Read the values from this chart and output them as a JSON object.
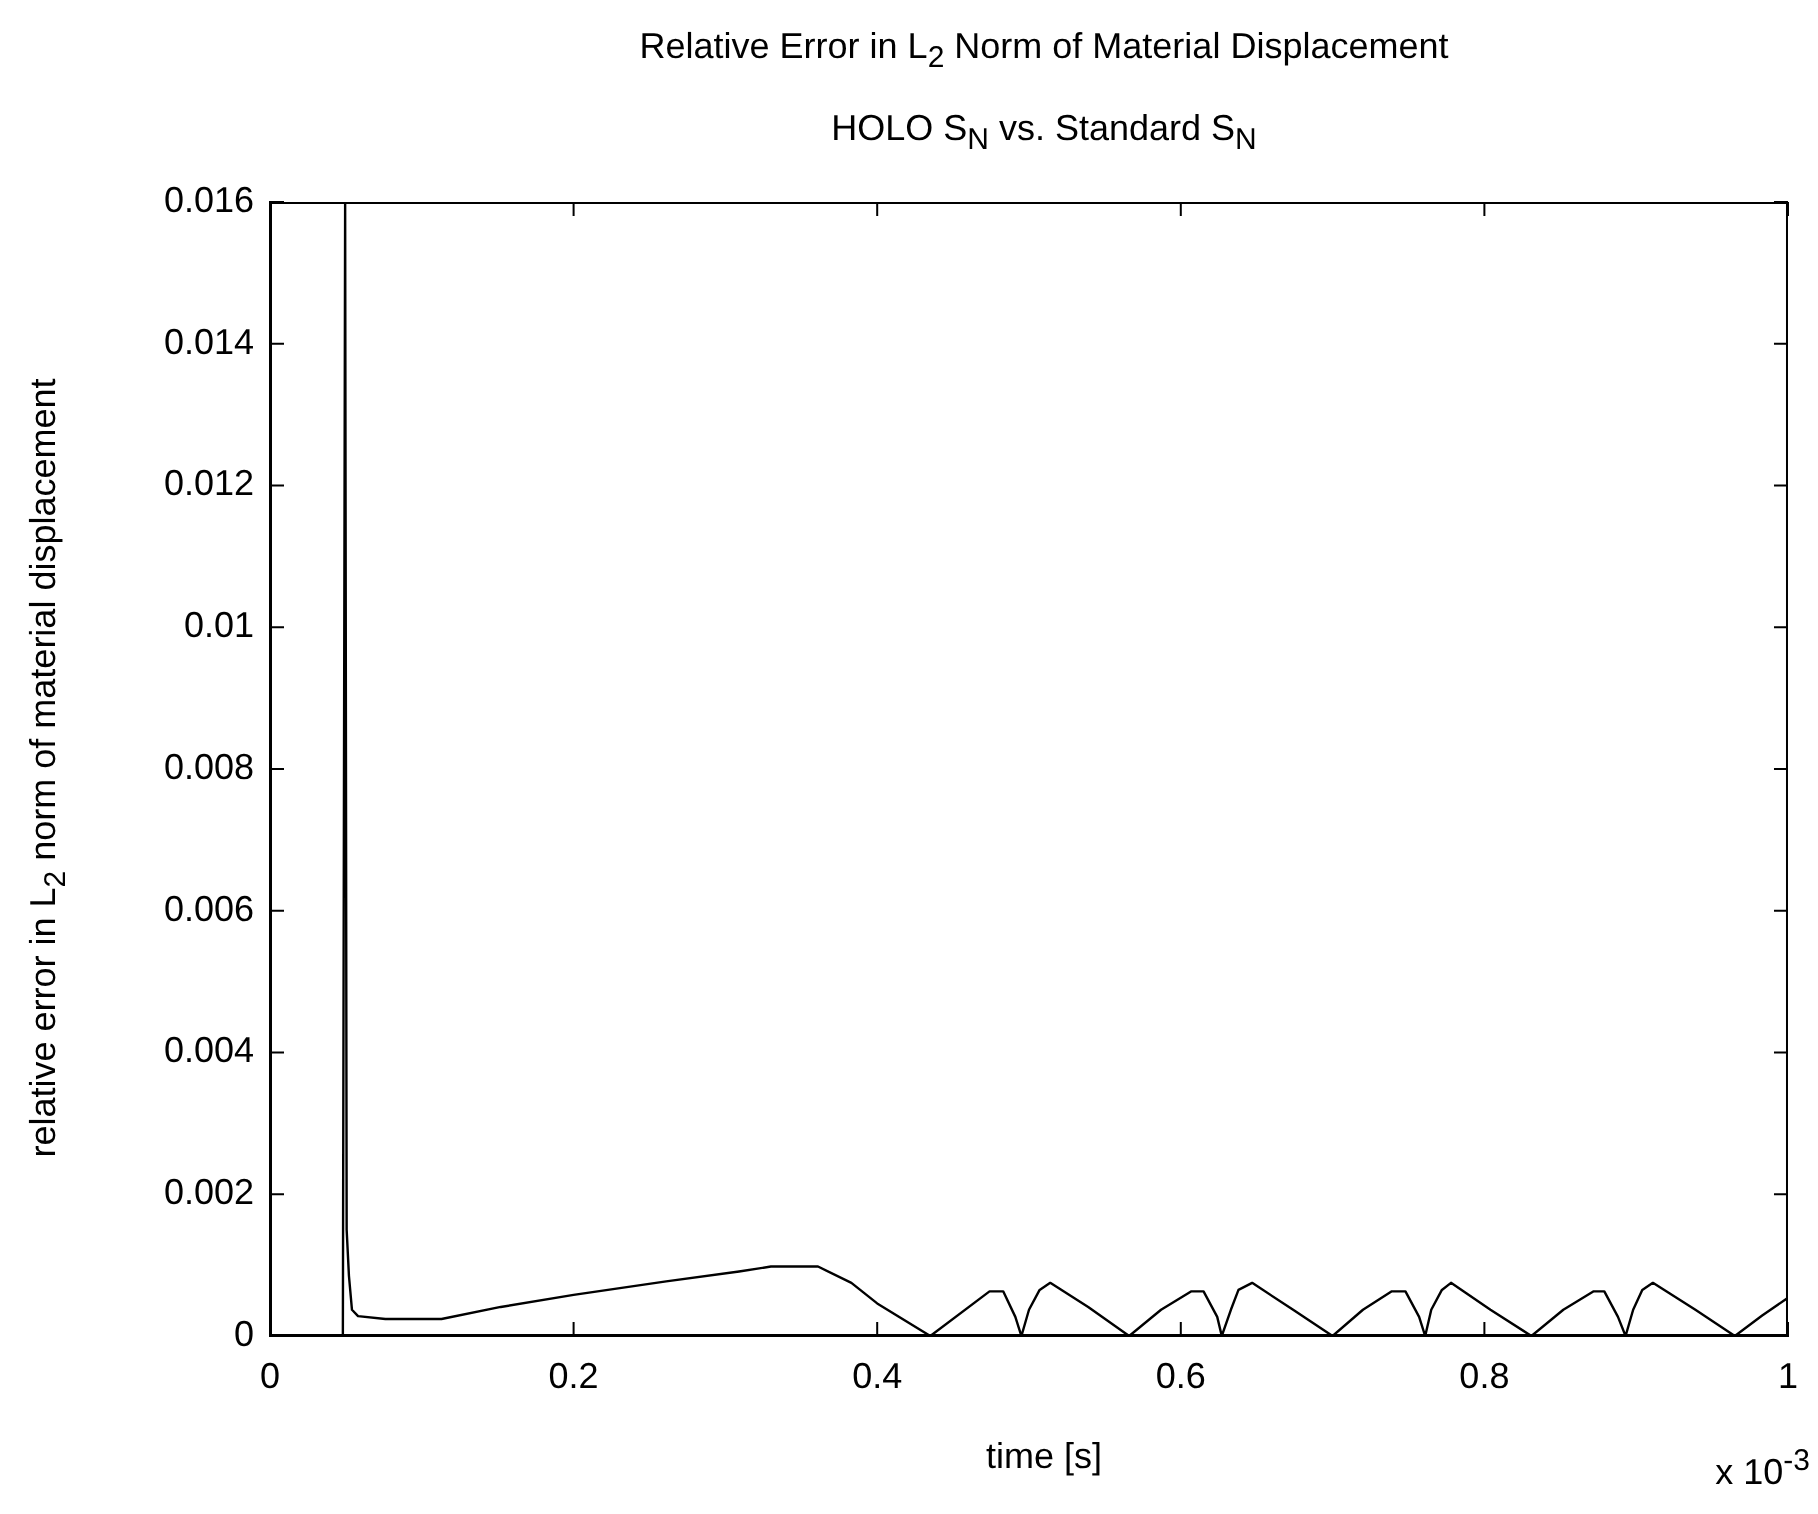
{
  "chart_data": {
    "type": "line",
    "title": "Relative Error in L$_{2}$ Norm of Material Displacement",
    "subtitle": "HOLO S$_{N}$ vs. Standard S$_{N}$",
    "xlabel": "time [s]",
    "ylabel": "relative error in L$_{2}$ norm of material displacement",
    "annotations": [
      "x 10$^{-3}$"
    ],
    "x": [
      0.048,
      0.0495,
      0.0505,
      0.052,
      0.054,
      0.058,
      0.076,
      0.113,
      0.152,
      0.2,
      0.261,
      0.309,
      0.33,
      0.361,
      0.383,
      0.4,
      0.435,
      0.474,
      0.483,
      0.491,
      0.495,
      0.5,
      0.507,
      0.514,
      0.539,
      0.566,
      0.587,
      0.607,
      0.615,
      0.624,
      0.627,
      0.633,
      0.638,
      0.647,
      0.674,
      0.7,
      0.72,
      0.739,
      0.748,
      0.757,
      0.761,
      0.765,
      0.772,
      0.778,
      0.804,
      0.831,
      0.852,
      0.872,
      0.879,
      0.888,
      0.893,
      0.898,
      0.904,
      0.911,
      0.939,
      0.965,
      0.983,
      1.0
    ],
    "series": [
      {
        "color": "#000000",
        "values": [
          0,
          0.016,
          0.0015,
          0.00085,
          0.00037,
          0.00028,
          0.00024,
          0.00024,
          0.00041,
          0.00058,
          0.00077,
          0.00091,
          0.00098,
          0.00098,
          0.00075,
          0.00046,
          0,
          0.00063,
          0.00063,
          0.00027,
          0,
          0.00037,
          0.00065,
          0.00075,
          0.00041,
          0,
          0.00037,
          0.00063,
          0.00063,
          0.00027,
          0,
          0.00037,
          0.00065,
          0.00075,
          0.00037,
          0,
          0.00037,
          0.00063,
          0.00063,
          0.00027,
          0,
          0.00037,
          0.00065,
          0.00075,
          0.00037,
          0,
          0.00037,
          0.00063,
          0.00063,
          0.00027,
          0,
          0.00037,
          0.00065,
          0.00075,
          0.00037,
          0,
          0.00029,
          0.00054
        ]
      }
    ],
    "xlim": [
      0,
      1
    ],
    "xticks": [
      0,
      0.2,
      0.4,
      0.6,
      0.8,
      1
    ],
    "ylim": [
      0,
      0.016
    ],
    "yticks": [
      0,
      0.002,
      0.004,
      0.006,
      0.008,
      0.01,
      0.012,
      0.014,
      0.016
    ],
    "marker": "none",
    "line_style": "solid",
    "legend": false
  }
}
